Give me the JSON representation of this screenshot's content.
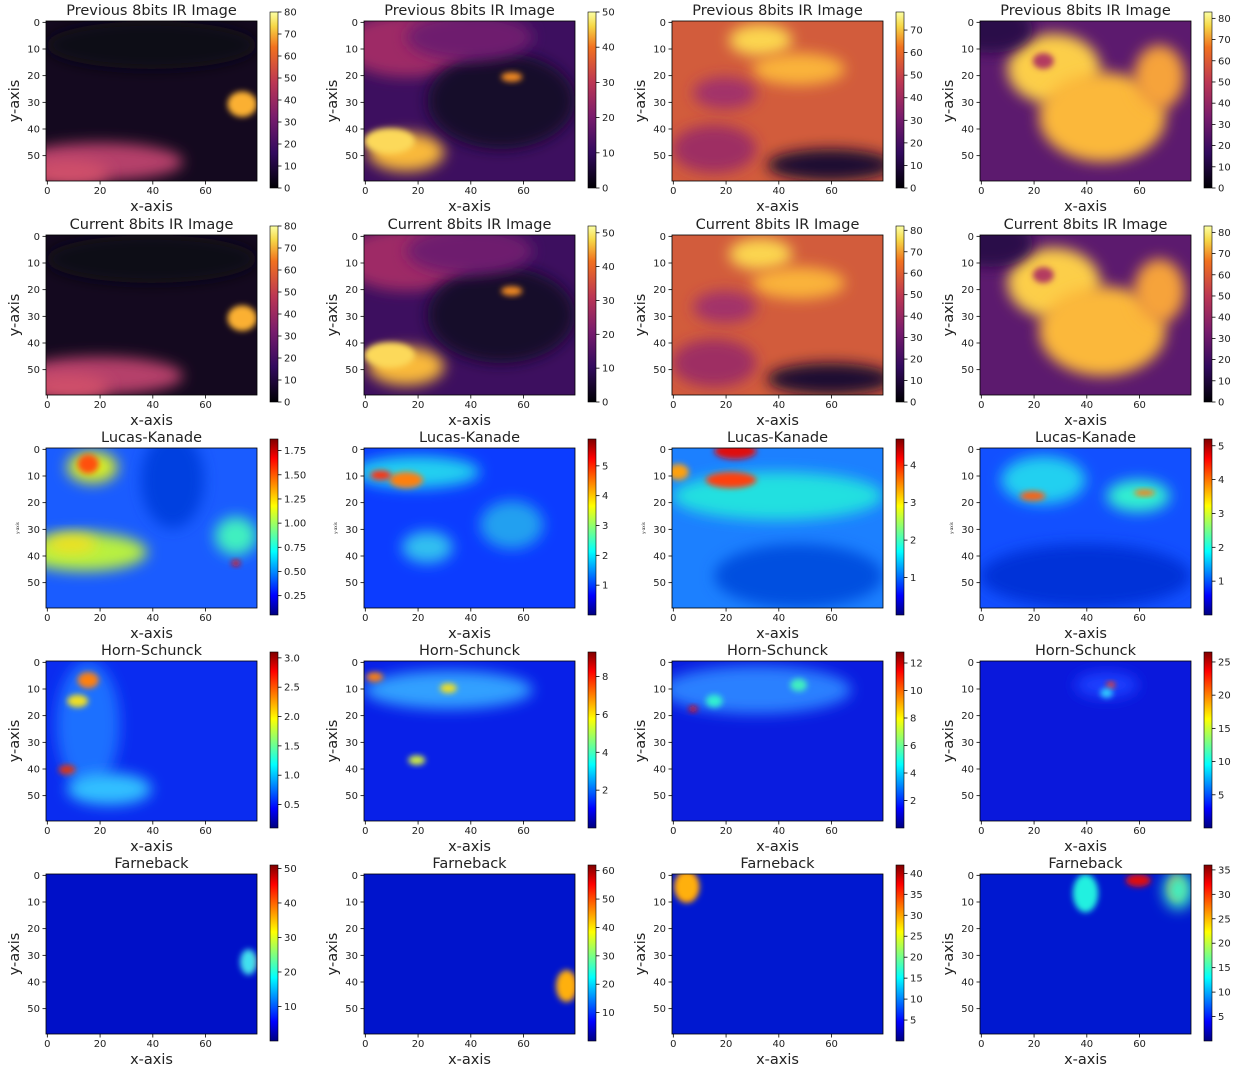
{
  "chart_data": [
    {
      "type": "heatmap",
      "title": "Previous 8bits IR Image",
      "xlabel": "x-axis",
      "ylabel": "y-axis",
      "cmap": "inferno",
      "xlim": [
        -0.5,
        79.5
      ],
      "ylim": [
        59.5,
        -0.5
      ],
      "xticks": [
        0,
        20,
        40,
        60
      ],
      "yticks": [
        0,
        10,
        20,
        30,
        40,
        50
      ],
      "clim": [
        0,
        80
      ],
      "cticks": [
        0,
        10,
        20,
        30,
        40,
        50,
        60,
        70,
        80
      ]
    },
    {
      "type": "heatmap",
      "title": "Previous 8bits IR Image",
      "xlabel": "x-axis",
      "ylabel": "y-axis",
      "cmap": "inferno",
      "xlim": [
        -0.5,
        79.5
      ],
      "ylim": [
        59.5,
        -0.5
      ],
      "xticks": [
        0,
        20,
        40,
        60
      ],
      "yticks": [
        0,
        10,
        20,
        30,
        40,
        50
      ],
      "clim": [
        0,
        50
      ],
      "cticks": [
        0,
        10,
        20,
        30,
        40,
        50
      ]
    },
    {
      "type": "heatmap",
      "title": "Previous 8bits IR Image",
      "xlabel": "x-axis",
      "ylabel": "y-axis",
      "cmap": "inferno",
      "xlim": [
        -0.5,
        79.5
      ],
      "ylim": [
        59.5,
        -0.5
      ],
      "xticks": [
        0,
        20,
        40,
        60
      ],
      "yticks": [
        0,
        10,
        20,
        30,
        40,
        50
      ],
      "clim": [
        0,
        78
      ],
      "cticks": [
        0,
        10,
        20,
        30,
        40,
        50,
        60,
        70
      ]
    },
    {
      "type": "heatmap",
      "title": "Previous 8bits IR Image",
      "xlabel": "x-axis",
      "ylabel": "y-axis",
      "cmap": "inferno",
      "xlim": [
        -0.5,
        79.5
      ],
      "ylim": [
        59.5,
        -0.5
      ],
      "xticks": [
        0,
        20,
        40,
        60
      ],
      "yticks": [
        0,
        10,
        20,
        30,
        40,
        50
      ],
      "clim": [
        0,
        83
      ],
      "cticks": [
        0,
        10,
        20,
        30,
        40,
        50,
        60,
        70,
        80
      ]
    },
    {
      "type": "heatmap",
      "title": "Current 8bits IR Image",
      "xlabel": "x-axis",
      "ylabel": "y-axis",
      "cmap": "inferno",
      "xlim": [
        -0.5,
        79.5
      ],
      "ylim": [
        59.5,
        -0.5
      ],
      "xticks": [
        0,
        20,
        40,
        60
      ],
      "yticks": [
        0,
        10,
        20,
        30,
        40,
        50
      ],
      "clim": [
        0,
        80
      ],
      "cticks": [
        0,
        10,
        20,
        30,
        40,
        50,
        60,
        70,
        80
      ]
    },
    {
      "type": "heatmap",
      "title": "Current 8bits IR Image",
      "xlabel": "x-axis",
      "ylabel": "y-axis",
      "cmap": "inferno",
      "xlim": [
        -0.5,
        79.5
      ],
      "ylim": [
        59.5,
        -0.5
      ],
      "xticks": [
        0,
        20,
        40,
        60
      ],
      "yticks": [
        0,
        10,
        20,
        30,
        40,
        50
      ],
      "clim": [
        0,
        52
      ],
      "cticks": [
        0,
        10,
        20,
        30,
        40,
        50
      ]
    },
    {
      "type": "heatmap",
      "title": "Current 8bits IR Image",
      "xlabel": "x-axis",
      "ylabel": "y-axis",
      "cmap": "inferno",
      "xlim": [
        -0.5,
        79.5
      ],
      "ylim": [
        59.5,
        -0.5
      ],
      "xticks": [
        0,
        20,
        40,
        60
      ],
      "yticks": [
        0,
        10,
        20,
        30,
        40,
        50
      ],
      "clim": [
        0,
        82
      ],
      "cticks": [
        0,
        10,
        20,
        30,
        40,
        50,
        60,
        70,
        80
      ]
    },
    {
      "type": "heatmap",
      "title": "Current 8bits IR Image",
      "xlabel": "x-axis",
      "ylabel": "y-axis",
      "cmap": "inferno",
      "xlim": [
        -0.5,
        79.5
      ],
      "ylim": [
        59.5,
        -0.5
      ],
      "xticks": [
        0,
        20,
        40,
        60
      ],
      "yticks": [
        0,
        10,
        20,
        30,
        40,
        50
      ],
      "clim": [
        0,
        83
      ],
      "cticks": [
        0,
        10,
        20,
        30,
        40,
        50,
        60,
        70,
        80
      ]
    },
    {
      "type": "heatmap",
      "title": "Lucas-Kanade",
      "xlabel": "x-axis",
      "ylabel": "y-axis",
      "ylabel_small": true,
      "cmap": "jet",
      "xlim": [
        -0.5,
        79.5
      ],
      "ylim": [
        59.5,
        -0.5
      ],
      "xticks": [
        0,
        20,
        40,
        60
      ],
      "yticks": [
        0,
        10,
        20,
        30,
        40,
        50
      ],
      "clim": [
        0.05,
        1.87
      ],
      "cticks": [
        0.25,
        {
          "value": 0.5,
          "label": "0.50"
        },
        0.75,
        {
          "value": 1,
          "label": "1.00"
        },
        1.25,
        {
          "value": 1.5,
          "label": "1.50"
        },
        1.75
      ]
    },
    {
      "type": "heatmap",
      "title": "Lucas-Kanade",
      "xlabel": "x-axis",
      "ylabel": "y-axis",
      "ylabel_small": true,
      "cmap": "jet",
      "xlim": [
        -0.5,
        79.5
      ],
      "ylim": [
        59.5,
        -0.5
      ],
      "xticks": [
        0,
        20,
        40,
        60
      ],
      "yticks": [
        0,
        10,
        20,
        30,
        40,
        50
      ],
      "clim": [
        0,
        5.9
      ],
      "cticks": [
        1,
        2,
        3,
        4,
        5
      ]
    },
    {
      "type": "heatmap",
      "title": "Lucas-Kanade",
      "xlabel": "x-axis",
      "ylabel": "y-axis",
      "ylabel_small": true,
      "cmap": "jet",
      "xlim": [
        -0.5,
        79.5
      ],
      "ylim": [
        59.5,
        -0.5
      ],
      "xticks": [
        0,
        20,
        40,
        60
      ],
      "yticks": [
        0,
        10,
        20,
        30,
        40,
        50
      ],
      "clim": [
        0,
        4.7
      ],
      "cticks": [
        1,
        2,
        3,
        4
      ]
    },
    {
      "type": "heatmap",
      "title": "Lucas-Kanade",
      "xlabel": "x-axis",
      "ylabel": "y-axis",
      "ylabel_small": true,
      "cmap": "jet",
      "xlim": [
        -0.5,
        79.5
      ],
      "ylim": [
        59.5,
        -0.5
      ],
      "xticks": [
        0,
        20,
        40,
        60
      ],
      "yticks": [
        0,
        10,
        20,
        30,
        40,
        50
      ],
      "clim": [
        0,
        5.2
      ],
      "cticks": [
        1,
        2,
        3,
        4,
        5
      ]
    },
    {
      "type": "heatmap",
      "title": "Horn-Schunck",
      "xlabel": "x-axis",
      "ylabel": "y-axis",
      "cmap": "jet",
      "xlim": [
        -0.5,
        79.5
      ],
      "ylim": [
        59.5,
        -0.5
      ],
      "xticks": [
        0,
        20,
        40,
        60
      ],
      "yticks": [
        0,
        10,
        20,
        30,
        40,
        50
      ],
      "clim": [
        0.1,
        3.1
      ],
      "cticks": [
        0.5,
        {
          "value": 1,
          "label": "1.0"
        },
        1.5,
        {
          "value": 2,
          "label": "2.0"
        },
        2.5,
        {
          "value": 3,
          "label": "3.0"
        }
      ]
    },
    {
      "type": "heatmap",
      "title": "Horn-Schunck",
      "xlabel": "x-axis",
      "ylabel": "y-axis",
      "cmap": "jet",
      "xlim": [
        -0.5,
        79.5
      ],
      "ylim": [
        59.5,
        -0.5
      ],
      "xticks": [
        0,
        20,
        40,
        60
      ],
      "yticks": [
        0,
        10,
        20,
        30,
        40,
        50
      ],
      "clim": [
        0,
        9.3
      ],
      "cticks": [
        2,
        4,
        6,
        8
      ]
    },
    {
      "type": "heatmap",
      "title": "Horn-Schunck",
      "xlabel": "x-axis",
      "ylabel": "y-axis",
      "cmap": "jet",
      "xlim": [
        -0.5,
        79.5
      ],
      "ylim": [
        59.5,
        -0.5
      ],
      "xticks": [
        0,
        20,
        40,
        60
      ],
      "yticks": [
        0,
        10,
        20,
        30,
        40,
        50
      ],
      "clim": [
        0,
        12.8
      ],
      "cticks": [
        2,
        4,
        6,
        8,
        10,
        12
      ]
    },
    {
      "type": "heatmap",
      "title": "Horn-Schunck",
      "xlabel": "x-axis",
      "ylabel": "y-axis",
      "cmap": "jet",
      "xlim": [
        -0.5,
        79.5
      ],
      "ylim": [
        59.5,
        -0.5
      ],
      "xticks": [
        0,
        20,
        40,
        60
      ],
      "yticks": [
        0,
        10,
        20,
        30,
        40,
        50
      ],
      "clim": [
        0,
        26.5
      ],
      "cticks": [
        5,
        10,
        15,
        20,
        25
      ]
    },
    {
      "type": "heatmap",
      "title": "Farneback",
      "xlabel": "x-axis",
      "ylabel": "y-axis",
      "cmap": "jet",
      "xlim": [
        -0.5,
        79.5
      ],
      "ylim": [
        59.5,
        -0.5
      ],
      "xticks": [
        0,
        20,
        40,
        60
      ],
      "yticks": [
        0,
        10,
        20,
        30,
        40,
        50
      ],
      "clim": [
        0,
        51
      ],
      "cticks": [
        10,
        20,
        30,
        40,
        50
      ]
    },
    {
      "type": "heatmap",
      "title": "Farneback",
      "xlabel": "x-axis",
      "ylabel": "y-axis",
      "cmap": "jet",
      "xlim": [
        -0.5,
        79.5
      ],
      "ylim": [
        59.5,
        -0.5
      ],
      "xticks": [
        0,
        20,
        40,
        60
      ],
      "yticks": [
        0,
        10,
        20,
        30,
        40,
        50
      ],
      "clim": [
        0,
        62
      ],
      "cticks": [
        10,
        20,
        30,
        40,
        50,
        60
      ]
    },
    {
      "type": "heatmap",
      "title": "Farneback",
      "xlabel": "x-axis",
      "ylabel": "y-axis",
      "cmap": "jet",
      "xlim": [
        -0.5,
        79.5
      ],
      "ylim": [
        59.5,
        -0.5
      ],
      "xticks": [
        0,
        20,
        40,
        60
      ],
      "yticks": [
        0,
        10,
        20,
        30,
        40,
        50
      ],
      "clim": [
        0,
        42
      ],
      "cticks": [
        5,
        10,
        15,
        20,
        25,
        30,
        35,
        40
      ]
    },
    {
      "type": "heatmap",
      "title": "Farneback",
      "xlabel": "x-axis",
      "ylabel": "y-axis",
      "cmap": "jet",
      "xlim": [
        -0.5,
        79.5
      ],
      "ylim": [
        59.5,
        -0.5
      ],
      "xticks": [
        0,
        20,
        40,
        60
      ],
      "yticks": [
        0,
        10,
        20,
        30,
        40,
        50
      ],
      "clim": [
        0,
        36
      ],
      "cticks": [
        5,
        10,
        15,
        20,
        25,
        30,
        35
      ]
    }
  ]
}
